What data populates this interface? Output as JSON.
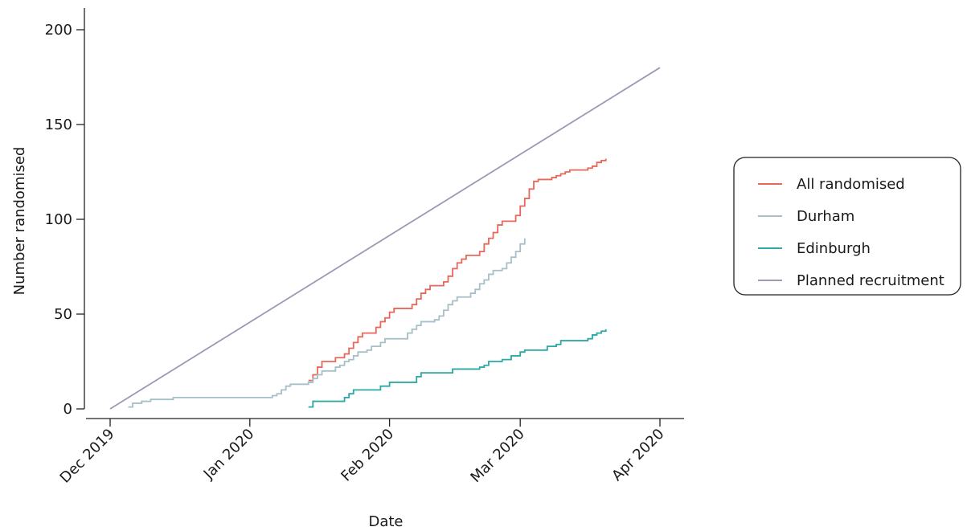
{
  "chart_data": {
    "type": "line",
    "title": "",
    "xlabel": "Date",
    "ylabel": "Number randomised",
    "xlim": [
      "2019-12-01",
      "2020-04-01"
    ],
    "ylim": [
      0,
      200
    ],
    "x_ticks": [
      {
        "date": "2019-12-01",
        "label": "Dec 2019"
      },
      {
        "date": "2020-01-01",
        "label": "Jan 2020"
      },
      {
        "date": "2020-02-01",
        "label": "Feb 2020"
      },
      {
        "date": "2020-03-01",
        "label": "Mar 2020"
      },
      {
        "date": "2020-04-01",
        "label": "Apr 2020"
      }
    ],
    "y_ticks": [
      0,
      50,
      100,
      150,
      200
    ],
    "grid": false,
    "legend_position": "right",
    "series": [
      {
        "name": "All randomised",
        "color": "#e8675a",
        "step": true,
        "points": [
          [
            "2020-01-14",
            15
          ],
          [
            "2020-01-15",
            18
          ],
          [
            "2020-01-16",
            22
          ],
          [
            "2020-01-17",
            25
          ],
          [
            "2020-01-20",
            27
          ],
          [
            "2020-01-22",
            29
          ],
          [
            "2020-01-23",
            32
          ],
          [
            "2020-01-24",
            35
          ],
          [
            "2020-01-25",
            38
          ],
          [
            "2020-01-26",
            40
          ],
          [
            "2020-01-29",
            43
          ],
          [
            "2020-01-30",
            46
          ],
          [
            "2020-01-31",
            48
          ],
          [
            "2020-02-01",
            51
          ],
          [
            "2020-02-02",
            53
          ],
          [
            "2020-02-06",
            55
          ],
          [
            "2020-02-07",
            58
          ],
          [
            "2020-02-08",
            61
          ],
          [
            "2020-02-09",
            63
          ],
          [
            "2020-02-10",
            65
          ],
          [
            "2020-02-13",
            67
          ],
          [
            "2020-02-14",
            70
          ],
          [
            "2020-02-15",
            74
          ],
          [
            "2020-02-16",
            77
          ],
          [
            "2020-02-17",
            79
          ],
          [
            "2020-02-18",
            81
          ],
          [
            "2020-02-21",
            83
          ],
          [
            "2020-02-22",
            87
          ],
          [
            "2020-02-23",
            90
          ],
          [
            "2020-02-24",
            93
          ],
          [
            "2020-02-25",
            97
          ],
          [
            "2020-02-26",
            99
          ],
          [
            "2020-02-29",
            102
          ],
          [
            "2020-03-01",
            107
          ],
          [
            "2020-03-02",
            111
          ],
          [
            "2020-03-03",
            116
          ],
          [
            "2020-03-04",
            120
          ],
          [
            "2020-03-05",
            121
          ],
          [
            "2020-03-08",
            122
          ],
          [
            "2020-03-09",
            123
          ],
          [
            "2020-03-10",
            124
          ],
          [
            "2020-03-11",
            125
          ],
          [
            "2020-03-12",
            126
          ],
          [
            "2020-03-13",
            126
          ],
          [
            "2020-03-16",
            127
          ],
          [
            "2020-03-17",
            128
          ],
          [
            "2020-03-18",
            130
          ],
          [
            "2020-03-19",
            131
          ],
          [
            "2020-03-20",
            132
          ]
        ]
      },
      {
        "name": "Durham",
        "color": "#a7bfc7",
        "step": true,
        "points": [
          [
            "2019-12-05",
            1
          ],
          [
            "2019-12-06",
            3
          ],
          [
            "2019-12-08",
            4
          ],
          [
            "2019-12-10",
            5
          ],
          [
            "2019-12-15",
            6
          ],
          [
            "2019-12-22",
            6
          ],
          [
            "2020-01-01",
            6
          ],
          [
            "2020-01-06",
            7
          ],
          [
            "2020-01-07",
            8
          ],
          [
            "2020-01-08",
            10
          ],
          [
            "2020-01-09",
            12
          ],
          [
            "2020-01-10",
            13
          ],
          [
            "2020-01-14",
            14
          ],
          [
            "2020-01-15",
            16
          ],
          [
            "2020-01-16",
            18
          ],
          [
            "2020-01-17",
            20
          ],
          [
            "2020-01-20",
            22
          ],
          [
            "2020-01-21",
            23
          ],
          [
            "2020-01-22",
            25
          ],
          [
            "2020-01-23",
            26
          ],
          [
            "2020-01-24",
            28
          ],
          [
            "2020-01-25",
            30
          ],
          [
            "2020-01-27",
            31
          ],
          [
            "2020-01-28",
            33
          ],
          [
            "2020-01-30",
            35
          ],
          [
            "2020-01-31",
            37
          ],
          [
            "2020-02-05",
            40
          ],
          [
            "2020-02-06",
            42
          ],
          [
            "2020-02-07",
            44
          ],
          [
            "2020-02-08",
            46
          ],
          [
            "2020-02-11",
            47
          ],
          [
            "2020-02-12",
            49
          ],
          [
            "2020-02-13",
            52
          ],
          [
            "2020-02-14",
            55
          ],
          [
            "2020-02-15",
            57
          ],
          [
            "2020-02-16",
            59
          ],
          [
            "2020-02-19",
            61
          ],
          [
            "2020-02-20",
            63
          ],
          [
            "2020-02-21",
            66
          ],
          [
            "2020-02-22",
            68
          ],
          [
            "2020-02-23",
            71
          ],
          [
            "2020-02-24",
            73
          ],
          [
            "2020-02-26",
            74
          ],
          [
            "2020-02-27",
            77
          ],
          [
            "2020-02-28",
            80
          ],
          [
            "2020-02-29",
            83
          ],
          [
            "2020-03-01",
            87
          ],
          [
            "2020-03-02",
            90
          ]
        ]
      },
      {
        "name": "Edinburgh",
        "color": "#2aa9a5",
        "step": true,
        "points": [
          [
            "2020-01-14",
            1
          ],
          [
            "2020-01-15",
            4
          ],
          [
            "2020-01-20",
            4
          ],
          [
            "2020-01-22",
            6
          ],
          [
            "2020-01-23",
            8
          ],
          [
            "2020-01-24",
            10
          ],
          [
            "2020-01-30",
            12
          ],
          [
            "2020-02-01",
            14
          ],
          [
            "2020-02-07",
            17
          ],
          [
            "2020-02-08",
            19
          ],
          [
            "2020-02-15",
            21
          ],
          [
            "2020-02-21",
            22
          ],
          [
            "2020-02-22",
            23
          ],
          [
            "2020-02-23",
            25
          ],
          [
            "2020-02-26",
            26
          ],
          [
            "2020-02-28",
            28
          ],
          [
            "2020-03-01",
            30
          ],
          [
            "2020-03-02",
            31
          ],
          [
            "2020-03-07",
            33
          ],
          [
            "2020-03-09",
            34
          ],
          [
            "2020-03-10",
            36
          ],
          [
            "2020-03-16",
            37
          ],
          [
            "2020-03-17",
            39
          ],
          [
            "2020-03-18",
            40
          ],
          [
            "2020-03-19",
            41
          ],
          [
            "2020-03-20",
            42
          ]
        ]
      },
      {
        "name": "Planned recruitment",
        "color": "#9b9ab5",
        "step": false,
        "points": [
          [
            "2019-12-01",
            0
          ],
          [
            "2020-04-01",
            180
          ]
        ]
      }
    ]
  }
}
